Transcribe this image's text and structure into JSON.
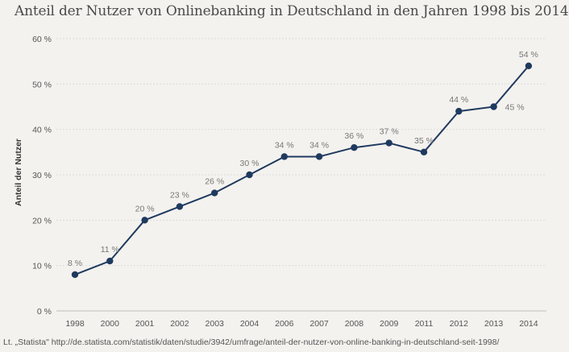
{
  "source": "Lt. „Statista\" http://de.statista.com/statistik/daten/studie/3942/umfrage/anteil-der-nutzer-von-online-banking-in-deutschland-seit-1998/",
  "colors": {
    "line": "#1f3a5f",
    "background": "#f4f2ef",
    "grid": "#dcdcdc"
  },
  "chart_data": {
    "type": "line",
    "title": "Anteil der Nutzer von Onlinebanking in Deutschland in den Jahren 1998 bis 2014",
    "xlabel": "",
    "ylabel": "Anteil der Nutzer",
    "categories": [
      "1998",
      "2000",
      "2001",
      "2002",
      "2003",
      "2004",
      "2006",
      "2007",
      "2008",
      "2009",
      "2011",
      "2012",
      "2013",
      "2014"
    ],
    "series": [
      {
        "values": [
          8,
          11,
          20,
          23,
          26,
          30,
          34,
          34,
          36,
          37,
          35,
          44,
          45,
          54
        ]
      }
    ],
    "data_labels": [
      "8 %",
      "11 %",
      "20 %",
      "23 %",
      "26 %",
      "30 %",
      "34 %",
      "34 %",
      "36 %",
      "37 %",
      "35 %",
      "44 %",
      "45 %",
      "54 %"
    ],
    "ylim": [
      0,
      60
    ],
    "yticks": [
      0,
      10,
      20,
      30,
      40,
      50,
      60
    ],
    "ytick_labels": [
      "0 %",
      "10 %",
      "20 %",
      "30 %",
      "40 %",
      "50 %",
      "60 %"
    ],
    "grid": true,
    "legend": "none"
  }
}
